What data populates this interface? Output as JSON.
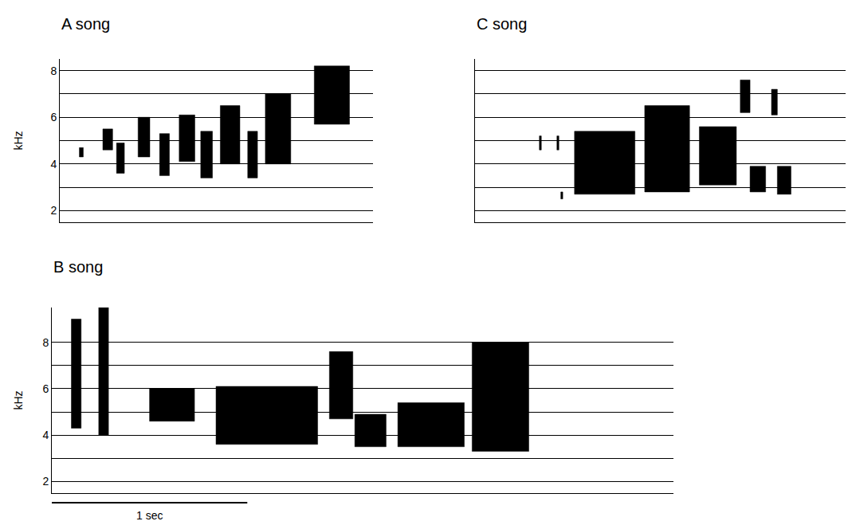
{
  "chart_data": [
    {
      "type": "spectrogram",
      "title": "A song",
      "y_label": "kHz",
      "xlim": [
        0,
        1.6
      ],
      "ylim": [
        1.5,
        8.5
      ],
      "yticks": [
        2,
        4,
        6,
        8
      ],
      "grid": true,
      "tick_labels": "y",
      "color": "#000000",
      "syllables": [
        {
          "t": [
            0.1,
            0.12
          ],
          "f": [
            4.3,
            4.7
          ]
        },
        {
          "t": [
            0.22,
            0.27
          ],
          "f": [
            4.6,
            5.5
          ]
        },
        {
          "t": [
            0.29,
            0.33
          ],
          "f": [
            3.6,
            4.9
          ]
        },
        {
          "t": [
            0.4,
            0.46
          ],
          "f": [
            4.3,
            6.0
          ]
        },
        {
          "t": [
            0.51,
            0.56
          ],
          "f": [
            3.5,
            5.3
          ]
        },
        {
          "t": [
            0.61,
            0.69
          ],
          "f": [
            4.1,
            6.1
          ]
        },
        {
          "t": [
            0.72,
            0.78
          ],
          "f": [
            3.4,
            5.4
          ]
        },
        {
          "t": [
            0.82,
            0.92
          ],
          "f": [
            4.0,
            6.5
          ]
        },
        {
          "t": [
            0.96,
            1.01
          ],
          "f": [
            3.4,
            5.4
          ]
        },
        {
          "t": [
            1.05,
            1.18
          ],
          "f": [
            4.0,
            7.0
          ]
        },
        {
          "t": [
            1.3,
            1.48
          ],
          "f": [
            5.7,
            8.2
          ]
        }
      ]
    },
    {
      "type": "spectrogram",
      "title": "B song",
      "y_label": "kHz",
      "xlim": [
        0,
        3.18
      ],
      "ylim": [
        1.5,
        9.5
      ],
      "yticks": [
        2,
        4,
        6,
        8
      ],
      "grid": true,
      "tick_labels": "y",
      "color": "#000000",
      "scale_bar": {
        "value": 1,
        "label": "1 sec"
      },
      "syllables": [
        {
          "t": [
            0.1,
            0.15
          ],
          "f": [
            4.3,
            9.0
          ]
        },
        {
          "t": [
            0.24,
            0.29
          ],
          "f": [
            4.0,
            9.5
          ]
        },
        {
          "t": [
            0.5,
            0.73
          ],
          "f": [
            4.6,
            6.0
          ]
        },
        {
          "t": [
            0.84,
            1.36
          ],
          "f": [
            3.6,
            6.1
          ]
        },
        {
          "t": [
            1.42,
            1.54
          ],
          "f": [
            4.7,
            7.6
          ]
        },
        {
          "t": [
            1.55,
            1.71
          ],
          "f": [
            3.5,
            4.9
          ]
        },
        {
          "t": [
            1.77,
            2.11
          ],
          "f": [
            3.5,
            5.4
          ]
        },
        {
          "t": [
            2.15,
            2.44
          ],
          "f": [
            3.3,
            8.0
          ]
        }
      ]
    },
    {
      "type": "spectrogram",
      "title": "C song",
      "xlim": [
        0,
        1.9
      ],
      "ylim": [
        1.5,
        8.5
      ],
      "yticks": [
        2,
        4,
        6,
        8
      ],
      "grid": true,
      "tick_labels": false,
      "color": "#000000",
      "syllables": [
        {
          "t": [
            0.33,
            0.34
          ],
          "f": [
            4.6,
            5.2
          ]
        },
        {
          "t": [
            0.42,
            0.43
          ],
          "f": [
            4.6,
            5.2
          ]
        },
        {
          "t": [
            0.44,
            0.45
          ],
          "f": [
            2.5,
            2.8
          ]
        },
        {
          "t": [
            0.51,
            0.82
          ],
          "f": [
            2.7,
            5.4
          ]
        },
        {
          "t": [
            0.87,
            1.1
          ],
          "f": [
            2.8,
            6.5
          ]
        },
        {
          "t": [
            1.15,
            1.34
          ],
          "f": [
            3.1,
            5.6
          ]
        },
        {
          "t": [
            1.36,
            1.41
          ],
          "f": [
            6.2,
            7.6
          ]
        },
        {
          "t": [
            1.41,
            1.49
          ],
          "f": [
            2.8,
            3.9
          ]
        },
        {
          "t": [
            1.52,
            1.55
          ],
          "f": [
            6.1,
            7.2
          ]
        },
        {
          "t": [
            1.55,
            1.62
          ],
          "f": [
            2.7,
            3.9
          ]
        }
      ]
    }
  ]
}
